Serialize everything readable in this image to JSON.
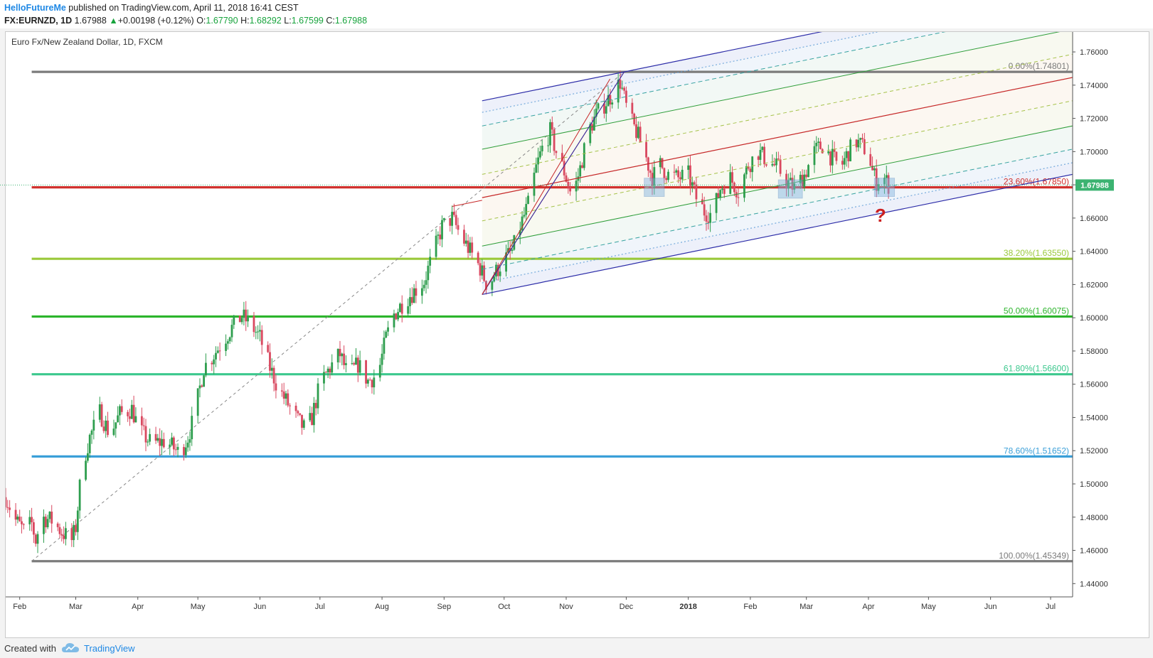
{
  "header": {
    "author": "HelloFutureMe",
    "published_text": "published on TradingView.com, April 11, 2018 16:41 CEST",
    "symbol": "FX:EURNZD, 1D",
    "last": "1.67988",
    "change_arrow": "▲",
    "change": "+0.00198 (+0.12%)",
    "o_label": "O:",
    "o_value": "1.67790",
    "h_label": "H:",
    "h_value": "1.68292",
    "l_label": "L:",
    "l_value": "1.67599",
    "c_label": "C:",
    "c_value": "1.67988"
  },
  "footer": {
    "created_with": "Created with",
    "brand": "TradingView",
    "logo_icon": "tradingview-cloud-icon"
  },
  "colors": {
    "up_candle": "#2e9e4e",
    "down_candle": "#d9485f",
    "pitchfork_outer": "#2c2ca8",
    "pitchfork_median": "#c62828",
    "price_badge": "#3cb371"
  },
  "chart_data": {
    "type": "candlestick",
    "title": "Euro Fx/New Zealand Dollar, 1D, FXCM",
    "ylim": [
      1.432,
      1.772
    ],
    "yticks": [
      "1.76000",
      "1.74000",
      "1.72000",
      "1.70000",
      "1.68000",
      "1.66000",
      "1.64000",
      "1.62000",
      "1.60000",
      "1.58000",
      "1.56000",
      "1.54000",
      "1.52000",
      "1.50000",
      "1.48000",
      "1.46000",
      "1.44000"
    ],
    "xlim": [
      "2017-01-25",
      "2018-07-12"
    ],
    "xticks": [
      {
        "label": "Feb",
        "date": "2017-02-01",
        "bold": false
      },
      {
        "label": "Mar",
        "date": "2017-03-01",
        "bold": false
      },
      {
        "label": "Apr",
        "date": "2017-04-01",
        "bold": false
      },
      {
        "label": "May",
        "date": "2017-05-01",
        "bold": false
      },
      {
        "label": "Jun",
        "date": "2017-06-01",
        "bold": false
      },
      {
        "label": "Jul",
        "date": "2017-07-01",
        "bold": false
      },
      {
        "label": "Aug",
        "date": "2017-08-01",
        "bold": false
      },
      {
        "label": "Sep",
        "date": "2017-09-01",
        "bold": false
      },
      {
        "label": "Oct",
        "date": "2017-10-01",
        "bold": false
      },
      {
        "label": "Nov",
        "date": "2017-11-01",
        "bold": false
      },
      {
        "label": "Dec",
        "date": "2017-12-01",
        "bold": false
      },
      {
        "label": "2018",
        "date": "2018-01-01",
        "bold": true
      },
      {
        "label": "Feb",
        "date": "2018-02-01",
        "bold": false
      },
      {
        "label": "Mar",
        "date": "2018-03-01",
        "bold": false
      },
      {
        "label": "Apr",
        "date": "2018-04-01",
        "bold": false
      },
      {
        "label": "May",
        "date": "2018-05-01",
        "bold": false
      },
      {
        "label": "Jun",
        "date": "2018-06-01",
        "bold": false
      },
      {
        "label": "Jul",
        "date": "2018-07-01",
        "bold": false
      }
    ],
    "price_path": [
      [
        "2017-01-25",
        1.492
      ],
      [
        "2017-01-30",
        1.478
      ],
      [
        "2017-02-03",
        1.472
      ],
      [
        "2017-02-07",
        1.476
      ],
      [
        "2017-02-09",
        1.466
      ],
      [
        "2017-02-12",
        1.48
      ],
      [
        "2017-02-17",
        1.478
      ],
      [
        "2017-02-22",
        1.471
      ],
      [
        "2017-02-27",
        1.466
      ],
      [
        "2017-03-01",
        1.474
      ],
      [
        "2017-03-04",
        1.51
      ],
      [
        "2017-03-08",
        1.528
      ],
      [
        "2017-03-13",
        1.543
      ],
      [
        "2017-03-18",
        1.53
      ],
      [
        "2017-03-23",
        1.542
      ],
      [
        "2017-03-29",
        1.545
      ],
      [
        "2017-04-02",
        1.532
      ],
      [
        "2017-04-08",
        1.524
      ],
      [
        "2017-04-15",
        1.526
      ],
      [
        "2017-04-22",
        1.518
      ],
      [
        "2017-04-26",
        1.528
      ],
      [
        "2017-04-29",
        1.54
      ],
      [
        "2017-05-04",
        1.57
      ],
      [
        "2017-05-09",
        1.578
      ],
      [
        "2017-05-13",
        1.585
      ],
      [
        "2017-05-18",
        1.594
      ],
      [
        "2017-05-23",
        1.601
      ],
      [
        "2017-05-28",
        1.595
      ],
      [
        "2017-06-01",
        1.588
      ],
      [
        "2017-06-06",
        1.57
      ],
      [
        "2017-06-10",
        1.558
      ],
      [
        "2017-06-15",
        1.548
      ],
      [
        "2017-06-20",
        1.538
      ],
      [
        "2017-06-24",
        1.532
      ],
      [
        "2017-06-27",
        1.54
      ],
      [
        "2017-07-01",
        1.56
      ],
      [
        "2017-07-06",
        1.57
      ],
      [
        "2017-07-11",
        1.578
      ],
      [
        "2017-07-15",
        1.565
      ],
      [
        "2017-07-20",
        1.572
      ],
      [
        "2017-07-25",
        1.562
      ],
      [
        "2017-07-30",
        1.566
      ],
      [
        "2017-08-03",
        1.588
      ],
      [
        "2017-08-07",
        1.602
      ],
      [
        "2017-08-12",
        1.61
      ],
      [
        "2017-08-17",
        1.616
      ],
      [
        "2017-08-22",
        1.622
      ],
      [
        "2017-08-27",
        1.64
      ],
      [
        "2017-08-31",
        1.655
      ],
      [
        "2017-09-05",
        1.66
      ],
      [
        "2017-09-09",
        1.65
      ],
      [
        "2017-09-14",
        1.64
      ],
      [
        "2017-09-19",
        1.63
      ],
      [
        "2017-09-23",
        1.618
      ],
      [
        "2017-09-26",
        1.626
      ],
      [
        "2017-10-01",
        1.635
      ],
      [
        "2017-10-05",
        1.64
      ],
      [
        "2017-10-09",
        1.655
      ],
      [
        "2017-10-13",
        1.668
      ],
      [
        "2017-10-17",
        1.69
      ],
      [
        "2017-10-20",
        1.702
      ],
      [
        "2017-10-24",
        1.712
      ],
      [
        "2017-10-27",
        1.7
      ],
      [
        "2017-10-31",
        1.688
      ],
      [
        "2017-11-04",
        1.672
      ],
      [
        "2017-11-08",
        1.69
      ],
      [
        "2017-11-12",
        1.712
      ],
      [
        "2017-11-16",
        1.722
      ],
      [
        "2017-11-21",
        1.73
      ],
      [
        "2017-11-25",
        1.736
      ],
      [
        "2017-11-28",
        1.742
      ],
      [
        "2017-12-02",
        1.722
      ],
      [
        "2017-12-06",
        1.712
      ],
      [
        "2017-12-10",
        1.7
      ],
      [
        "2017-12-14",
        1.684
      ],
      [
        "2017-12-18",
        1.692
      ],
      [
        "2017-12-22",
        1.686
      ],
      [
        "2017-12-27",
        1.684
      ],
      [
        "2018-01-01",
        1.686
      ],
      [
        "2018-01-05",
        1.672
      ],
      [
        "2018-01-09",
        1.664
      ],
      [
        "2018-01-13",
        1.662
      ],
      [
        "2018-01-17",
        1.678
      ],
      [
        "2018-01-22",
        1.684
      ],
      [
        "2018-01-26",
        1.676
      ],
      [
        "2018-01-31",
        1.692
      ],
      [
        "2018-02-05",
        1.7
      ],
      [
        "2018-02-10",
        1.694
      ],
      [
        "2018-02-15",
        1.69
      ],
      [
        "2018-02-19",
        1.682
      ],
      [
        "2018-02-23",
        1.678
      ],
      [
        "2018-02-28",
        1.686
      ],
      [
        "2018-03-05",
        1.7
      ],
      [
        "2018-03-09",
        1.704
      ],
      [
        "2018-03-14",
        1.696
      ],
      [
        "2018-03-18",
        1.69
      ],
      [
        "2018-03-22",
        1.7
      ],
      [
        "2018-03-26",
        1.706
      ],
      [
        "2018-03-30",
        1.702
      ],
      [
        "2018-04-01",
        1.7
      ],
      [
        "2018-04-03",
        1.688
      ],
      [
        "2018-04-05",
        1.682
      ],
      [
        "2018-04-08",
        1.686
      ],
      [
        "2018-04-11",
        1.68
      ]
    ],
    "last_price": "1.67988",
    "fib_levels": [
      {
        "label": "0.00%(1.74801)",
        "price": 1.74801,
        "color": "#7b7b7b"
      },
      {
        "label": "23.60%(1.67850)",
        "price": 1.6785,
        "color": "#d0312d"
      },
      {
        "label": "38.20%(1.63550)",
        "price": 1.6355,
        "color": "#9ac93a"
      },
      {
        "label": "50.00%(1.60075)",
        "price": 1.60075,
        "color": "#2cb52c"
      },
      {
        "label": "61.80%(1.56600)",
        "price": 1.566,
        "color": "#3cc88e"
      },
      {
        "label": "78.60%(1.51652)",
        "price": 1.51652,
        "color": "#3a9fd8"
      },
      {
        "label": "100.00%(1.45349)",
        "price": 1.45349,
        "color": "#7b7b7b"
      }
    ],
    "fib_trend_line": {
      "from": [
        "2017-02-07",
        1.4535
      ],
      "to": [
        "2017-11-30",
        1.748
      ]
    },
    "pitchfork": {
      "pivot": [
        "2017-09-20",
        1.614
      ],
      "p1": [
        "2017-11-30",
        1.748
      ],
      "p2": [
        "2017-09-20",
        1.614
      ],
      "median_from": [
        "2017-09-05",
        1.667
      ],
      "median_to": [
        "2018-07-12",
        1.743
      ]
    },
    "highlight_zones": [
      {
        "from": [
          "2017-12-10",
          1.684
        ],
        "to": [
          "2017-12-20",
          1.673
        ]
      },
      {
        "from": [
          "2018-02-15",
          1.683
        ],
        "to": [
          "2018-02-27",
          1.672
        ]
      },
      {
        "from": [
          "2018-04-04",
          1.684
        ],
        "to": [
          "2018-04-14",
          1.673
        ]
      }
    ],
    "annotation": {
      "text": "?",
      "date": "2018-04-07",
      "price": 1.662,
      "color": "#cc1f1f"
    }
  }
}
